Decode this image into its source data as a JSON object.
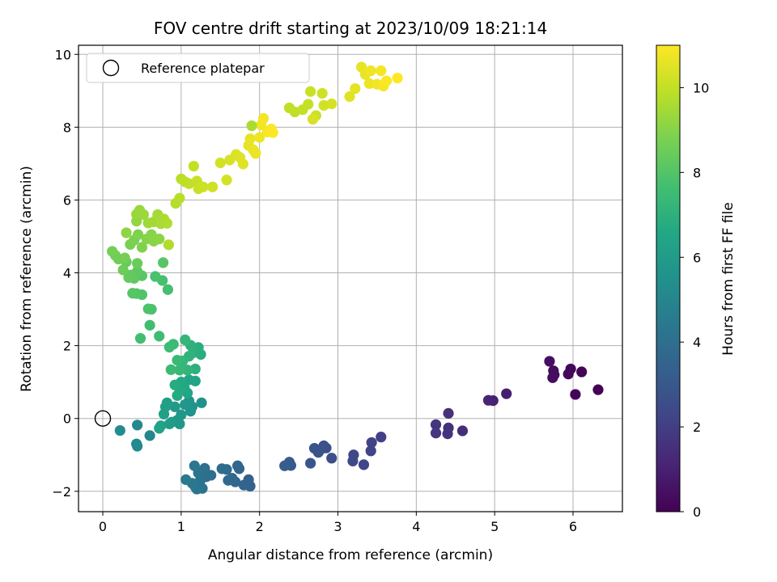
{
  "chart_data": {
    "type": "scatter",
    "title": "FOV centre drift starting at 2023/10/09 18:21:14",
    "xlabel": "Angular distance from reference (arcmin)",
    "ylabel": "Rotation from reference (arcmin)",
    "colorbar_label": "Hours from first FF file",
    "xlim": [
      -0.31,
      6.63
    ],
    "ylim": [
      -2.56,
      10.25
    ],
    "clim": [
      0,
      11
    ],
    "colormap": "viridis",
    "grid": true,
    "legend_position": "top-left",
    "x_ticks": [
      0,
      1,
      2,
      3,
      4,
      5,
      6
    ],
    "y_ticks": [
      -2,
      0,
      2,
      4,
      6,
      8,
      10
    ],
    "colorbar_ticks": [
      0,
      2,
      4,
      6,
      8,
      10
    ],
    "x_tick_labels": [
      "0",
      "1",
      "2",
      "3",
      "4",
      "5",
      "6"
    ],
    "y_tick_labels": [
      "−2",
      "0",
      "2",
      "4",
      "6",
      "8",
      "10"
    ],
    "colorbar_tick_labels": [
      "0",
      "2",
      "4",
      "6",
      "8",
      "10"
    ],
    "reference": {
      "name": "Reference platepar",
      "x": 0,
      "y": 0
    },
    "points": [
      {
        "x": 6.32,
        "y": 0.79,
        "t": 0.0
      },
      {
        "x": 6.11,
        "y": 1.28,
        "t": 0.1
      },
      {
        "x": 6.03,
        "y": 0.66,
        "t": 0.15
      },
      {
        "x": 5.97,
        "y": 1.36,
        "t": 0.2
      },
      {
        "x": 5.94,
        "y": 1.22,
        "t": 0.25
      },
      {
        "x": 5.76,
        "y": 1.2,
        "t": 0.3
      },
      {
        "x": 5.75,
        "y": 1.31,
        "t": 0.35
      },
      {
        "x": 5.74,
        "y": 1.12,
        "t": 0.4
      },
      {
        "x": 5.7,
        "y": 1.57,
        "t": 0.45
      },
      {
        "x": 5.15,
        "y": 0.68,
        "t": 0.9
      },
      {
        "x": 4.98,
        "y": 0.49,
        "t": 1.0
      },
      {
        "x": 4.92,
        "y": 0.5,
        "t": 1.1
      },
      {
        "x": 4.59,
        "y": -0.34,
        "t": 1.4
      },
      {
        "x": 4.41,
        "y": -0.26,
        "t": 1.5
      },
      {
        "x": 4.41,
        "y": 0.14,
        "t": 1.55
      },
      {
        "x": 4.4,
        "y": -0.42,
        "t": 1.6
      },
      {
        "x": 4.25,
        "y": -0.17,
        "t": 1.7
      },
      {
        "x": 4.25,
        "y": -0.4,
        "t": 1.75
      },
      {
        "x": 3.55,
        "y": -0.51,
        "t": 2.1
      },
      {
        "x": 3.43,
        "y": -0.66,
        "t": 2.2
      },
      {
        "x": 3.42,
        "y": -0.89,
        "t": 2.25
      },
      {
        "x": 3.33,
        "y": -1.27,
        "t": 2.3
      },
      {
        "x": 3.2,
        "y": -1.0,
        "t": 2.4
      },
      {
        "x": 3.19,
        "y": -1.17,
        "t": 2.45
      },
      {
        "x": 2.92,
        "y": -1.09,
        "t": 2.6
      },
      {
        "x": 2.85,
        "y": -0.81,
        "t": 2.65
      },
      {
        "x": 2.82,
        "y": -0.75,
        "t": 2.7
      },
      {
        "x": 2.78,
        "y": -0.85,
        "t": 2.75
      },
      {
        "x": 2.75,
        "y": -0.93,
        "t": 2.8
      },
      {
        "x": 2.7,
        "y": -0.82,
        "t": 2.85
      },
      {
        "x": 2.65,
        "y": -1.23,
        "t": 2.95
      },
      {
        "x": 2.4,
        "y": -1.29,
        "t": 3.1
      },
      {
        "x": 2.38,
        "y": -1.2,
        "t": 3.15
      },
      {
        "x": 2.32,
        "y": -1.3,
        "t": 3.2
      },
      {
        "x": 1.88,
        "y": -1.86,
        "t": 3.4
      },
      {
        "x": 1.86,
        "y": -1.68,
        "t": 3.45
      },
      {
        "x": 1.8,
        "y": -1.83,
        "t": 3.5
      },
      {
        "x": 1.74,
        "y": -1.38,
        "t": 3.55
      },
      {
        "x": 1.72,
        "y": -1.3,
        "t": 3.6
      },
      {
        "x": 1.69,
        "y": -1.74,
        "t": 3.65
      },
      {
        "x": 1.65,
        "y": -1.64,
        "t": 3.7
      },
      {
        "x": 1.6,
        "y": -1.7,
        "t": 3.75
      },
      {
        "x": 1.58,
        "y": -1.4,
        "t": 3.8
      },
      {
        "x": 1.52,
        "y": -1.38,
        "t": 3.85
      },
      {
        "x": 1.38,
        "y": -1.56,
        "t": 3.95
      },
      {
        "x": 1.32,
        "y": -1.6,
        "t": 4.0
      },
      {
        "x": 1.3,
        "y": -1.37,
        "t": 4.05
      },
      {
        "x": 1.27,
        "y": -1.92,
        "t": 4.1
      },
      {
        "x": 1.24,
        "y": -1.72,
        "t": 4.15
      },
      {
        "x": 1.22,
        "y": -1.5,
        "t": 4.2
      },
      {
        "x": 1.2,
        "y": -1.94,
        "t": 4.25
      },
      {
        "x": 1.18,
        "y": -1.88,
        "t": 4.3
      },
      {
        "x": 1.17,
        "y": -1.3,
        "t": 4.35
      },
      {
        "x": 1.14,
        "y": -1.78,
        "t": 4.4
      },
      {
        "x": 1.06,
        "y": -1.68,
        "t": 4.5
      },
      {
        "x": 0.6,
        "y": -0.47,
        "t": 5.0
      },
      {
        "x": 0.44,
        "y": -0.76,
        "t": 5.1
      },
      {
        "x": 0.44,
        "y": -0.18,
        "t": 5.15
      },
      {
        "x": 0.43,
        "y": -0.7,
        "t": 5.2
      },
      {
        "x": 0.22,
        "y": -0.33,
        "t": 5.3
      },
      {
        "x": 1.26,
        "y": 0.43,
        "t": 5.5
      },
      {
        "x": 1.14,
        "y": 0.32,
        "t": 5.6
      },
      {
        "x": 1.12,
        "y": 0.2,
        "t": 5.65
      },
      {
        "x": 1.1,
        "y": 0.48,
        "t": 5.7
      },
      {
        "x": 1.05,
        "y": 0.38,
        "t": 5.75
      },
      {
        "x": 1.0,
        "y": 0.1,
        "t": 5.8
      },
      {
        "x": 0.98,
        "y": -0.15,
        "t": 5.85
      },
      {
        "x": 0.95,
        "y": -0.05,
        "t": 5.9
      },
      {
        "x": 0.92,
        "y": 0.32,
        "t": 5.95
      },
      {
        "x": 0.88,
        "y": -0.1,
        "t": 6.0
      },
      {
        "x": 0.85,
        "y": -0.15,
        "t": 6.05
      },
      {
        "x": 0.82,
        "y": 0.43,
        "t": 6.1
      },
      {
        "x": 0.8,
        "y": 0.32,
        "t": 6.15
      },
      {
        "x": 0.78,
        "y": 0.12,
        "t": 6.2
      },
      {
        "x": 0.74,
        "y": -0.2,
        "t": 6.25
      },
      {
        "x": 0.72,
        "y": -0.27,
        "t": 6.3
      },
      {
        "x": 1.18,
        "y": 1.03,
        "t": 6.4
      },
      {
        "x": 1.1,
        "y": 1.06,
        "t": 6.45
      },
      {
        "x": 1.08,
        "y": 0.7,
        "t": 6.5
      },
      {
        "x": 1.04,
        "y": 0.84,
        "t": 6.55
      },
      {
        "x": 1.0,
        "y": 1.0,
        "t": 6.6
      },
      {
        "x": 0.98,
        "y": 0.8,
        "t": 6.65
      },
      {
        "x": 0.95,
        "y": 0.63,
        "t": 6.7
      },
      {
        "x": 0.92,
        "y": 0.92,
        "t": 6.75
      },
      {
        "x": 1.25,
        "y": 1.76,
        "t": 6.85
      },
      {
        "x": 1.22,
        "y": 1.95,
        "t": 6.9
      },
      {
        "x": 1.18,
        "y": 1.36,
        "t": 6.95
      },
      {
        "x": 1.15,
        "y": 1.8,
        "t": 7.0
      },
      {
        "x": 1.12,
        "y": 2.01,
        "t": 7.05
      },
      {
        "x": 1.1,
        "y": 1.71,
        "t": 7.1
      },
      {
        "x": 1.08,
        "y": 1.33,
        "t": 7.15
      },
      {
        "x": 1.05,
        "y": 2.16,
        "t": 7.2
      },
      {
        "x": 1.02,
        "y": 1.58,
        "t": 7.25
      },
      {
        "x": 0.98,
        "y": 1.33,
        "t": 7.3
      },
      {
        "x": 0.95,
        "y": 1.6,
        "t": 7.35
      },
      {
        "x": 0.9,
        "y": 2.04,
        "t": 7.4
      },
      {
        "x": 0.87,
        "y": 1.34,
        "t": 7.45
      },
      {
        "x": 0.85,
        "y": 1.96,
        "t": 7.5
      },
      {
        "x": 0.72,
        "y": 2.26,
        "t": 7.55
      },
      {
        "x": 0.6,
        "y": 2.56,
        "t": 7.6
      },
      {
        "x": 0.48,
        "y": 2.2,
        "t": 7.65
      },
      {
        "x": 0.83,
        "y": 3.54,
        "t": 7.7
      },
      {
        "x": 0.76,
        "y": 3.79,
        "t": 7.75
      },
      {
        "x": 0.67,
        "y": 3.9,
        "t": 7.8
      },
      {
        "x": 0.62,
        "y": 3.0,
        "t": 7.85
      },
      {
        "x": 0.58,
        "y": 3.01,
        "t": 7.9
      },
      {
        "x": 0.5,
        "y": 3.4,
        "t": 7.95
      },
      {
        "x": 0.43,
        "y": 3.43,
        "t": 8.0
      },
      {
        "x": 0.38,
        "y": 3.44,
        "t": 8.05
      },
      {
        "x": 0.77,
        "y": 4.28,
        "t": 8.1
      },
      {
        "x": 0.5,
        "y": 3.92,
        "t": 8.15
      },
      {
        "x": 0.44,
        "y": 4.04,
        "t": 8.2
      },
      {
        "x": 0.4,
        "y": 3.85,
        "t": 8.25
      },
      {
        "x": 0.36,
        "y": 3.94,
        "t": 8.3
      },
      {
        "x": 0.33,
        "y": 3.87,
        "t": 8.35
      },
      {
        "x": 0.3,
        "y": 4.3,
        "t": 8.4
      },
      {
        "x": 0.44,
        "y": 4.26,
        "t": 8.45
      },
      {
        "x": 0.26,
        "y": 4.08,
        "t": 8.5
      },
      {
        "x": 0.2,
        "y": 4.38,
        "t": 8.55
      },
      {
        "x": 0.16,
        "y": 4.48,
        "t": 8.6
      },
      {
        "x": 0.12,
        "y": 4.59,
        "t": 8.65
      },
      {
        "x": 0.28,
        "y": 4.41,
        "t": 8.7
      },
      {
        "x": 0.35,
        "y": 4.78,
        "t": 8.75
      },
      {
        "x": 0.4,
        "y": 4.9,
        "t": 8.8
      },
      {
        "x": 0.45,
        "y": 5.05,
        "t": 8.85
      },
      {
        "x": 0.5,
        "y": 4.7,
        "t": 8.9
      },
      {
        "x": 0.56,
        "y": 4.93,
        "t": 8.95
      },
      {
        "x": 0.62,
        "y": 5.05,
        "t": 9.0
      },
      {
        "x": 0.65,
        "y": 4.87,
        "t": 9.05
      },
      {
        "x": 0.72,
        "y": 4.93,
        "t": 9.1
      },
      {
        "x": 0.3,
        "y": 5.1,
        "t": 9.15
      },
      {
        "x": 0.43,
        "y": 5.42,
        "t": 9.2
      },
      {
        "x": 0.43,
        "y": 5.61,
        "t": 9.25
      },
      {
        "x": 0.47,
        "y": 5.72,
        "t": 9.3
      },
      {
        "x": 0.52,
        "y": 5.6,
        "t": 9.35
      },
      {
        "x": 0.58,
        "y": 5.37,
        "t": 9.4
      },
      {
        "x": 0.65,
        "y": 5.4,
        "t": 9.45
      },
      {
        "x": 0.7,
        "y": 5.6,
        "t": 9.5
      },
      {
        "x": 0.74,
        "y": 5.35,
        "t": 9.55
      },
      {
        "x": 0.78,
        "y": 5.48,
        "t": 9.6
      },
      {
        "x": 0.82,
        "y": 5.36,
        "t": 9.65
      },
      {
        "x": 0.84,
        "y": 4.77,
        "t": 9.7
      },
      {
        "x": 0.93,
        "y": 5.91,
        "t": 9.75
      },
      {
        "x": 0.98,
        "y": 6.05,
        "t": 9.8
      },
      {
        "x": 1.0,
        "y": 6.58,
        "t": 9.85
      },
      {
        "x": 1.05,
        "y": 6.5,
        "t": 9.9
      },
      {
        "x": 1.1,
        "y": 6.45,
        "t": 9.95
      },
      {
        "x": 1.16,
        "y": 6.93,
        "t": 10.0
      },
      {
        "x": 1.2,
        "y": 6.52,
        "t": 10.05
      },
      {
        "x": 1.22,
        "y": 6.31,
        "t": 10.1
      },
      {
        "x": 1.28,
        "y": 6.36,
        "t": 10.15
      },
      {
        "x": 1.4,
        "y": 6.36,
        "t": 10.2
      },
      {
        "x": 1.5,
        "y": 7.02,
        "t": 10.25
      },
      {
        "x": 1.58,
        "y": 6.55,
        "t": 10.3
      },
      {
        "x": 1.62,
        "y": 7.1,
        "t": 10.35
      },
      {
        "x": 1.7,
        "y": 7.25,
        "t": 10.4
      },
      {
        "x": 1.75,
        "y": 7.17,
        "t": 10.45
      },
      {
        "x": 1.79,
        "y": 6.99,
        "t": 10.5
      },
      {
        "x": 1.86,
        "y": 7.5,
        "t": 10.55
      },
      {
        "x": 1.88,
        "y": 7.68,
        "t": 10.6
      },
      {
        "x": 1.92,
        "y": 7.38,
        "t": 10.65
      },
      {
        "x": 1.95,
        "y": 7.28,
        "t": 10.7
      },
      {
        "x": 2.0,
        "y": 7.72,
        "t": 10.75
      },
      {
        "x": 2.02,
        "y": 8.06,
        "t": 10.8
      },
      {
        "x": 2.05,
        "y": 8.24,
        "t": 10.85
      },
      {
        "x": 2.1,
        "y": 7.87,
        "t": 10.9
      },
      {
        "x": 2.15,
        "y": 7.95,
        "t": 10.95
      },
      {
        "x": 2.17,
        "y": 7.85,
        "t": 11.0
      },
      {
        "x": 1.9,
        "y": 8.04,
        "t": 9.6
      },
      {
        "x": 2.38,
        "y": 8.53,
        "t": 9.9
      },
      {
        "x": 2.45,
        "y": 8.42,
        "t": 9.95
      },
      {
        "x": 2.55,
        "y": 8.48,
        "t": 10.0
      },
      {
        "x": 2.62,
        "y": 8.63,
        "t": 10.05
      },
      {
        "x": 2.65,
        "y": 8.98,
        "t": 10.1
      },
      {
        "x": 2.72,
        "y": 8.32,
        "t": 10.15
      },
      {
        "x": 2.8,
        "y": 8.93,
        "t": 10.2
      },
      {
        "x": 2.82,
        "y": 8.6,
        "t": 10.25
      },
      {
        "x": 2.92,
        "y": 8.64,
        "t": 10.3
      },
      {
        "x": 2.68,
        "y": 8.22,
        "t": 10.35
      },
      {
        "x": 3.15,
        "y": 8.84,
        "t": 10.5
      },
      {
        "x": 3.22,
        "y": 9.06,
        "t": 10.55
      },
      {
        "x": 3.3,
        "y": 9.65,
        "t": 10.6
      },
      {
        "x": 3.35,
        "y": 9.45,
        "t": 10.65
      },
      {
        "x": 3.4,
        "y": 9.2,
        "t": 10.7
      },
      {
        "x": 3.42,
        "y": 9.55,
        "t": 10.75
      },
      {
        "x": 3.5,
        "y": 9.18,
        "t": 10.8
      },
      {
        "x": 3.55,
        "y": 9.55,
        "t": 10.85
      },
      {
        "x": 3.58,
        "y": 9.13,
        "t": 10.9
      },
      {
        "x": 3.62,
        "y": 9.27,
        "t": 10.95
      },
      {
        "x": 3.76,
        "y": 9.35,
        "t": 11.0
      }
    ]
  }
}
